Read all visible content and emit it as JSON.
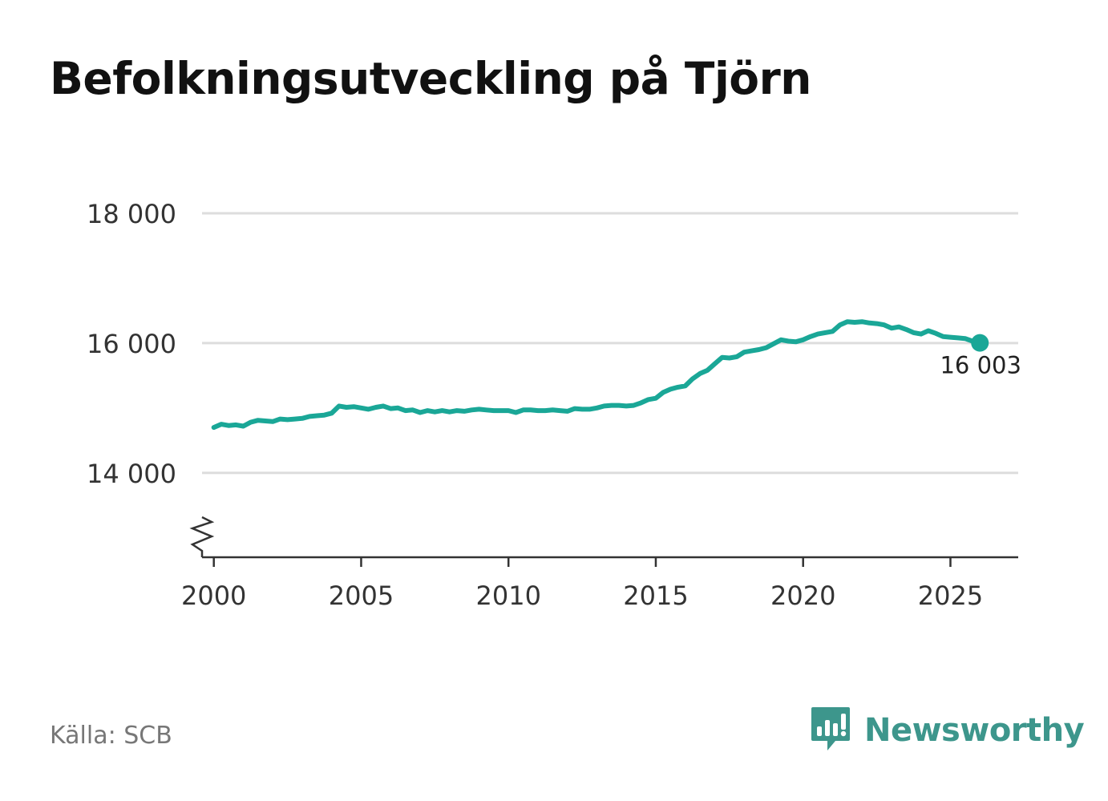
{
  "chart_data": {
    "type": "line",
    "title": "Befolkningsutveckling på Tjörn",
    "source": "Källa: SCB",
    "xlim": [
      1999.6,
      2027.3
    ],
    "ylim": [
      12700,
      18000
    ],
    "x_ticks": [
      2000,
      2005,
      2010,
      2015,
      2020,
      2025
    ],
    "x_tick_labels": [
      "2000",
      "2005",
      "2010",
      "2015",
      "2020",
      "2025"
    ],
    "y_ticks": [
      14000,
      16000,
      18000
    ],
    "y_tick_labels": [
      "14 000",
      "16 000",
      "18 000"
    ],
    "axis_break": true,
    "grid": true,
    "series": [
      {
        "name": "Befolkning",
        "color": "#1aa797",
        "x": [
          2000.0,
          2000.25,
          2000.5,
          2000.75,
          2001.0,
          2001.25,
          2001.5,
          2001.75,
          2002.0,
          2002.25,
          2002.5,
          2002.75,
          2003.0,
          2003.25,
          2003.5,
          2003.75,
          2004.0,
          2004.25,
          2004.5,
          2004.75,
          2005.0,
          2005.25,
          2005.5,
          2005.75,
          2006.0,
          2006.25,
          2006.5,
          2006.75,
          2007.0,
          2007.25,
          2007.5,
          2007.75,
          2008.0,
          2008.25,
          2008.5,
          2008.75,
          2009.0,
          2009.25,
          2009.5,
          2009.75,
          2010.0,
          2010.25,
          2010.5,
          2010.75,
          2011.0,
          2011.25,
          2011.5,
          2011.75,
          2012.0,
          2012.25,
          2012.5,
          2012.75,
          2013.0,
          2013.25,
          2013.5,
          2013.75,
          2014.0,
          2014.25,
          2014.5,
          2014.75,
          2015.0,
          2015.25,
          2015.5,
          2015.75,
          2016.0,
          2016.25,
          2016.5,
          2016.75,
          2017.0,
          2017.25,
          2017.5,
          2017.75,
          2018.0,
          2018.25,
          2018.5,
          2018.75,
          2019.0,
          2019.25,
          2019.5,
          2019.75,
          2020.0,
          2020.25,
          2020.5,
          2020.75,
          2021.0,
          2021.25,
          2021.5,
          2021.75,
          2022.0,
          2022.25,
          2022.5,
          2022.75,
          2023.0,
          2023.25,
          2023.5,
          2023.75,
          2024.0,
          2024.25,
          2024.5,
          2024.75,
          2025.0,
          2025.25,
          2025.5,
          2025.75,
          2026.0
        ],
        "values": [
          14700,
          14750,
          14730,
          14740,
          14720,
          14780,
          14810,
          14800,
          14790,
          14830,
          14820,
          14830,
          14840,
          14870,
          14880,
          14890,
          14920,
          15030,
          15010,
          15020,
          15000,
          14980,
          15010,
          15030,
          14990,
          15000,
          14960,
          14970,
          14930,
          14960,
          14940,
          14960,
          14940,
          14960,
          14950,
          14970,
          14980,
          14970,
          14960,
          14960,
          14960,
          14930,
          14970,
          14970,
          14960,
          14960,
          14970,
          14960,
          14950,
          14990,
          14980,
          14980,
          15000,
          15030,
          15040,
          15040,
          15030,
          15040,
          15080,
          15130,
          15150,
          15240,
          15290,
          15320,
          15340,
          15450,
          15530,
          15580,
          15680,
          15780,
          15770,
          15790,
          15860,
          15880,
          15900,
          15930,
          15990,
          16050,
          16030,
          16020,
          16050,
          16100,
          16140,
          16160,
          16180,
          16280,
          16330,
          16320,
          16330,
          16310,
          16300,
          16280,
          16230,
          16250,
          16210,
          16160,
          16140,
          16190,
          16150,
          16100,
          16090,
          16080,
          16070,
          16030,
          16003
        ]
      }
    ],
    "last_value_label": "16 003"
  },
  "footer": {
    "source": "Källa: SCB",
    "brand": "Newsworthy"
  }
}
